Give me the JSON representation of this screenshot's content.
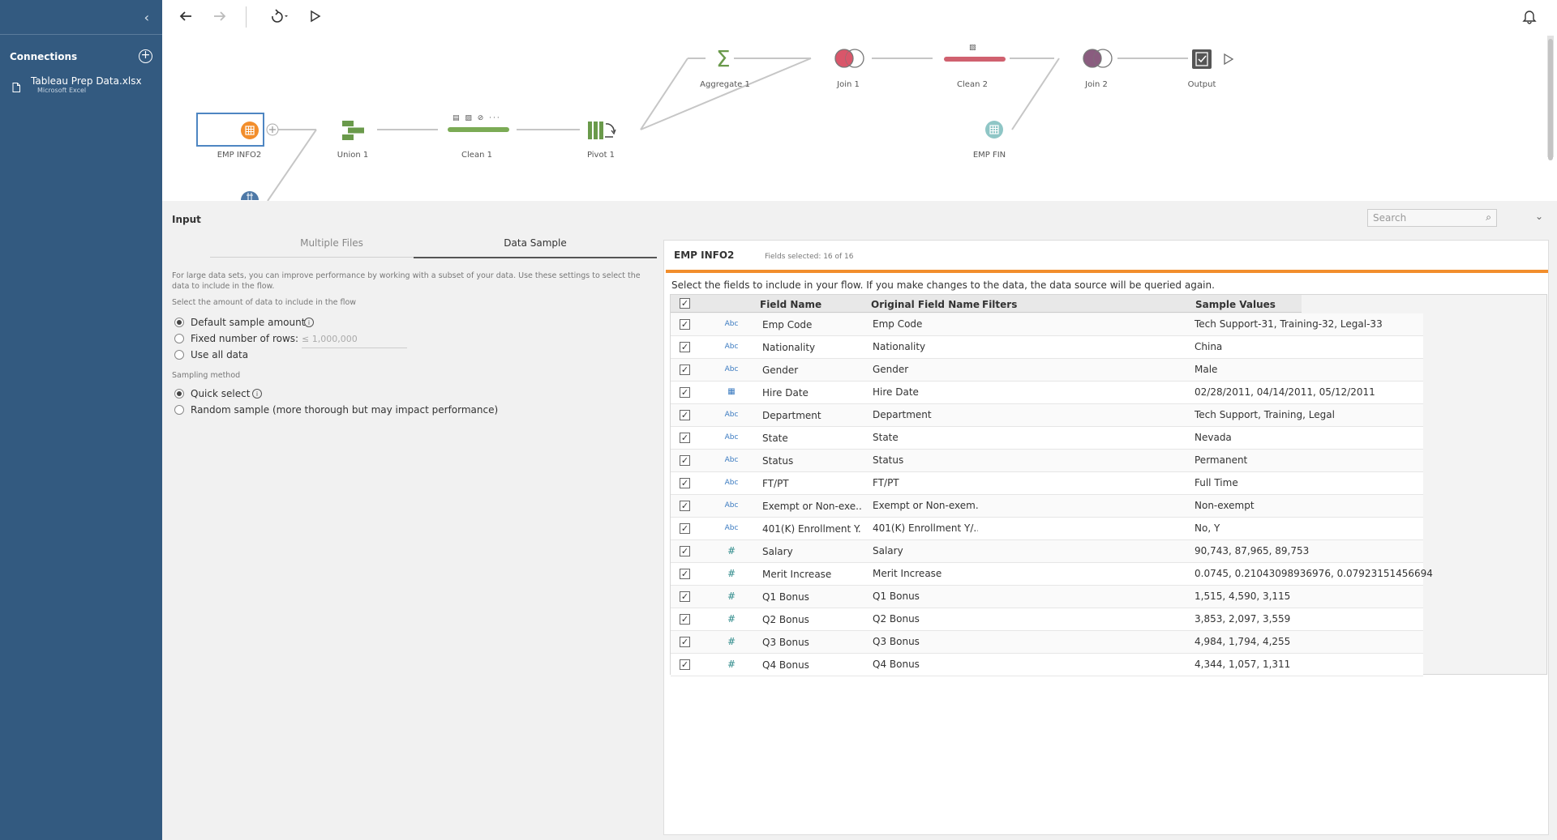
{
  "sidebar": {
    "collapse_icon": "chevron-left-icon",
    "connections_title": "Connections",
    "add_icon": "plus-circle-icon",
    "file": {
      "name": "Tableau Prep Data.xlsx",
      "type": "Microsoft Excel"
    }
  },
  "toolbar": {
    "back_icon": "arrow-left-icon",
    "forward_icon": "arrow-right-icon",
    "refresh_icon": "refresh-icon",
    "run_icon": "play-icon",
    "notifications_icon": "bell-icon"
  },
  "flow": {
    "nodes": {
      "emp_info2": "EMP INFO2",
      "union1": "Union 1",
      "clean1": "Clean 1",
      "pivot1": "Pivot 1",
      "aggregate1": "Aggregate 1",
      "join1": "Join 1",
      "clean2": "Clean 2",
      "join2": "Join 2",
      "output": "Output",
      "emp_fin": "EMP FIN"
    },
    "colors": {
      "input_orange": "#f28e2c",
      "union_green": "#6a9a4b",
      "clean_green": "#7bab55",
      "aggregate_green": "#6a9a4b",
      "join_pink": "#d9566a",
      "clean2_pink": "#d0616f",
      "join2_purple": "#8a5c7f",
      "emp_fin_teal": "#8fc6c6",
      "input_blue": "#4e79a7"
    }
  },
  "panel": {
    "title": "Input",
    "search_placeholder": "Search",
    "collapse_icon": "chevron-down-icon",
    "tabs": [
      {
        "label": "Multiple Files",
        "active": false
      },
      {
        "label": "Data Sample",
        "active": true
      }
    ],
    "help_text": "For large data sets, you can improve performance by working with a subset of your data. Use these settings to select the data to include in the flow.",
    "amount_label": "Select the amount of data to include in the flow",
    "amount_options": [
      {
        "label": "Default sample amount",
        "selected": true
      },
      {
        "label": "Fixed number of rows:",
        "selected": false
      },
      {
        "label": "Use all data",
        "selected": false
      }
    ],
    "rows_placeholder": "≤ 1,000,000",
    "sampling_label": "Sampling method",
    "sampling_options": [
      {
        "label": "Quick select",
        "selected": true
      },
      {
        "label": "Random sample (more thorough but may impact performance)",
        "selected": false
      }
    ]
  },
  "fields_card": {
    "title": "EMP INFO2",
    "fields_selected": "Fields selected: 16 of 16",
    "instruction": "Select the fields to include in your flow. If you make changes to the data, the data source will be queried again.",
    "columns": {
      "field_name": "Field Name",
      "original_field_name": "Original Field Name",
      "filters": "Filters",
      "sample_values": "Sample Values"
    },
    "rows": [
      {
        "type": "Abc",
        "field": "Emp Code",
        "original": "Emp Code",
        "sample": "Tech Support-31, Training-32, Legal-33"
      },
      {
        "type": "Abc",
        "field": "Nationality",
        "original": "Nationality",
        "sample": "China"
      },
      {
        "type": "Abc",
        "field": "Gender",
        "original": "Gender",
        "sample": "Male"
      },
      {
        "type": "date",
        "field": "Hire Date",
        "original": "Hire Date",
        "sample": "02/28/2011, 04/14/2011, 05/12/2011"
      },
      {
        "type": "Abc",
        "field": "Department",
        "original": "Department",
        "sample": "Tech Support, Training, Legal"
      },
      {
        "type": "Abc",
        "field": "State",
        "original": "State",
        "sample": "Nevada"
      },
      {
        "type": "Abc",
        "field": "Status",
        "original": "Status",
        "sample": "Permanent"
      },
      {
        "type": "Abc",
        "field": "FT/PT",
        "original": "FT/PT",
        "sample": "Full Time"
      },
      {
        "type": "Abc",
        "field": "Exempt or Non-exe...",
        "original": "Exempt or Non-exem..",
        "sample": "Non-exempt"
      },
      {
        "type": "Abc",
        "field": "401(K) Enrollment Y..",
        "original": "401(K) Enrollment Y/..",
        "sample": "No, Y"
      },
      {
        "type": "#",
        "field": "Salary",
        "original": "Salary",
        "sample": "90,743, 87,965, 89,753"
      },
      {
        "type": "#",
        "field": "Merit Increase",
        "original": "Merit Increase",
        "sample": "0.0745, 0.21043098936976, 0.07923151456694"
      },
      {
        "type": "#",
        "field": "Q1 Bonus",
        "original": "Q1 Bonus",
        "sample": "1,515, 4,590, 3,115"
      },
      {
        "type": "#",
        "field": "Q2 Bonus",
        "original": "Q2 Bonus",
        "sample": "3,853, 2,097, 3,559"
      },
      {
        "type": "#",
        "field": "Q3 Bonus",
        "original": "Q3 Bonus",
        "sample": "4,984, 1,794, 4,255"
      },
      {
        "type": "#",
        "field": "Q4 Bonus",
        "original": "Q4 Bonus",
        "sample": "4,344, 1,057, 1,311"
      }
    ]
  }
}
